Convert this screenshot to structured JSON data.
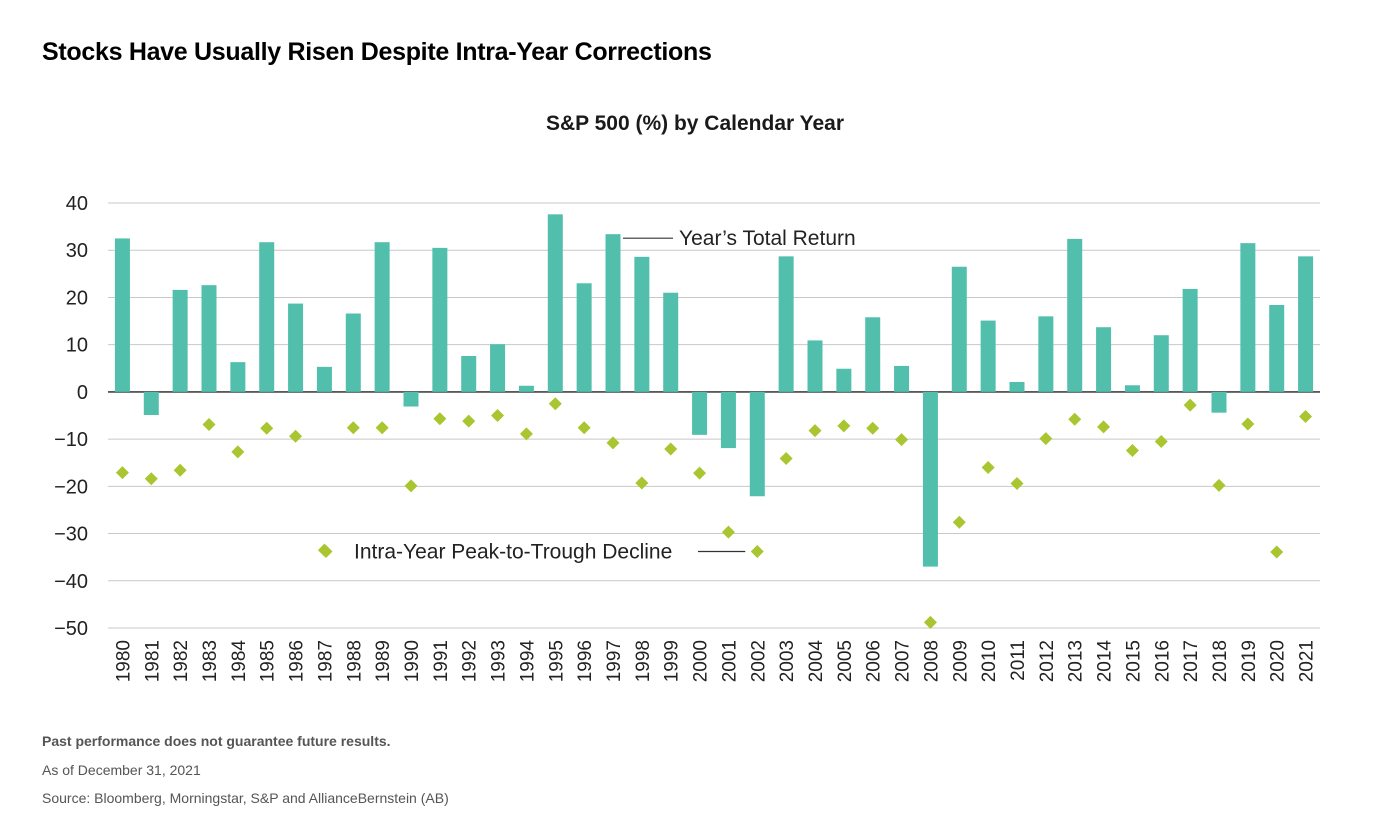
{
  "page": {
    "title": "Stocks Have Usually Risen Despite Intra-Year Corrections",
    "footnote": "Past performance does not guarantee future results.",
    "as_of": "As of December 31, 2021",
    "source": "Source: Bloomberg, Morningstar, S&P and AllianceBernstein (AB)"
  },
  "colors": {
    "bar": "#52BFAD",
    "marker": "#A9C52F",
    "grid": "#c8c8c8",
    "axis": "#222222"
  },
  "chart_data": {
    "type": "bar",
    "title": "S&P 500 (%) by Calendar Year",
    "xlabel": "",
    "ylabel": "",
    "ylim": [
      -50,
      40
    ],
    "yticks": [
      40,
      30,
      20,
      10,
      0,
      -10,
      -20,
      -30,
      -40,
      -50
    ],
    "ytick_labels": [
      "40",
      "30",
      "20",
      "10",
      "0",
      "−10",
      "−20",
      "−30",
      "−40",
      "−50"
    ],
    "grid": true,
    "categories": [
      "1980",
      "1981",
      "1982",
      "1983",
      "1984",
      "1985",
      "1986",
      "1987",
      "1988",
      "1989",
      "1990",
      "1991",
      "1992",
      "1993",
      "1994",
      "1995",
      "1996",
      "1997",
      "1998",
      "1999",
      "2000",
      "2001",
      "2002",
      "2003",
      "2004",
      "2005",
      "2006",
      "2007",
      "2008",
      "2009",
      "2010",
      "2011",
      "2012",
      "2013",
      "2014",
      "2015",
      "2016",
      "2017",
      "2018",
      "2019",
      "2020",
      "2021"
    ],
    "series": [
      {
        "name": "Year’s Total Return",
        "kind": "bar",
        "values": [
          32.5,
          -4.9,
          21.6,
          22.6,
          6.3,
          31.7,
          18.7,
          5.3,
          16.6,
          31.7,
          -3.1,
          30.5,
          7.6,
          10.1,
          1.3,
          37.6,
          23.0,
          33.4,
          28.6,
          21.0,
          -9.1,
          -11.9,
          -22.1,
          28.7,
          10.9,
          4.9,
          15.8,
          5.5,
          -37.0,
          26.5,
          15.1,
          2.1,
          16.0,
          32.4,
          13.7,
          1.4,
          12.0,
          21.8,
          -4.4,
          31.5,
          18.4,
          28.7
        ]
      },
      {
        "name": "Intra-Year Peak-to-Trough Decline",
        "kind": "scatter",
        "values": [
          -17.1,
          -18.4,
          -16.6,
          -6.9,
          -12.7,
          -7.7,
          -9.4,
          -33.5,
          -7.6,
          -7.6,
          -19.9,
          -5.7,
          -6.2,
          -5.0,
          -8.9,
          -2.5,
          -7.6,
          -10.8,
          -19.3,
          -12.1,
          -17.2,
          -29.7,
          -33.8,
          -14.1,
          -8.2,
          -7.2,
          -7.7,
          -10.1,
          -48.8,
          -27.6,
          -16.0,
          -19.4,
          -9.9,
          -5.8,
          -7.4,
          -12.4,
          -10.5,
          -2.8,
          -19.8,
          -6.8,
          -33.9,
          -5.2
        ]
      }
    ],
    "annotations": [
      {
        "text": "Year’s Total Return",
        "points_to": "1997"
      },
      {
        "text": "Intra-Year Peak-to-Trough Decline",
        "points_to": "2002"
      }
    ]
  }
}
